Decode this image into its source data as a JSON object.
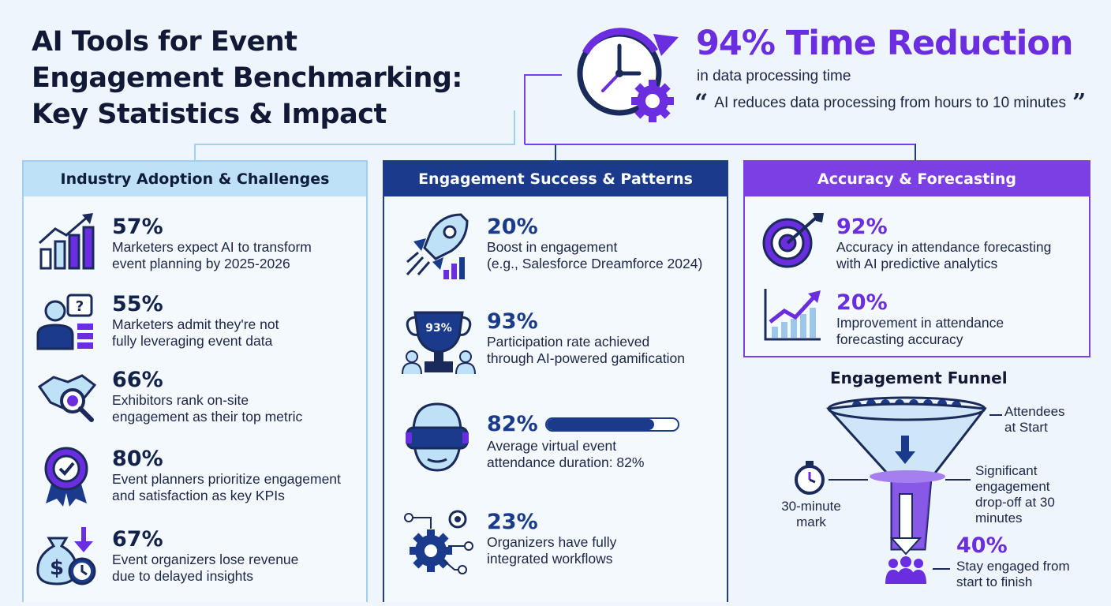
{
  "title": "AI Tools for Event Engagement Benchmarking: Key Statistics & Impact",
  "headline": {
    "value": "94% Time Reduction",
    "subtitle": "in data processing time",
    "quote": "AI reduces data processing from hours to 10 minutes"
  },
  "sections": [
    {
      "heading": "Industry Adoption & Challenges",
      "stats": [
        {
          "value": "57%",
          "line1": "Marketers expect AI to transform",
          "line2": "event planning by 2025-2026",
          "icon": "growth-chart-icon"
        },
        {
          "value": "55%",
          "line1": "Marketers admit they're not",
          "line2": "fully leveraging event data",
          "icon": "confused-person-icon"
        },
        {
          "value": "66%",
          "line1": "Exhibitors rank on-site",
          "line2": "engagement as their top metric",
          "icon": "handshake-magnifier-icon"
        },
        {
          "value": "80%",
          "line1": "Event planners prioritize engagement",
          "line2": "and satisfaction as key KPIs",
          "icon": "award-badge-icon"
        },
        {
          "value": "67%",
          "line1": "Event organizers lose revenue",
          "line2": "due to delayed insights",
          "icon": "money-bag-clock-icon"
        }
      ]
    },
    {
      "heading": "Engagement Success & Patterns",
      "stats": [
        {
          "value": "20%",
          "line1": "Boost in engagement",
          "line2": "(e.g., Salesforce Dreamforce 2024)",
          "icon": "rocket-icon"
        },
        {
          "value": "93%",
          "line1": "Participation rate achieved",
          "line2": "through AI-powered gamification",
          "icon": "trophy-icon",
          "badge": "93%"
        },
        {
          "value": "82%",
          "line1": "Average virtual event",
          "line2": "attendance duration: 82%",
          "icon": "vr-headset-icon",
          "progress": 0.82
        },
        {
          "value": "23%",
          "line1": "Organizers have fully",
          "line2": "integrated workflows",
          "icon": "gears-network-icon"
        }
      ]
    },
    {
      "heading": "Accuracy & Forecasting",
      "stats": [
        {
          "value": "92%",
          "line1": "Accuracy in attendance forecasting",
          "line2": "with AI predictive analytics",
          "icon": "target-icon"
        },
        {
          "value": "20%",
          "line1": "Improvement in attendance",
          "line2": "forecasting accuracy",
          "icon": "rising-chart-icon"
        }
      ]
    }
  ],
  "funnel": {
    "title": "Engagement Funnel",
    "top_label_1": "Attendees",
    "top_label_2": "at Start",
    "mid_label_1": "Significant",
    "mid_label_2": "engagement",
    "mid_label_3": "drop-off at 30",
    "mid_label_4": "minutes",
    "timer_label_1": "30-minute",
    "timer_label_2": "mark",
    "bottom_value": "40%",
    "bottom_label_1": "Stay engaged from",
    "bottom_label_2": "start to finish"
  },
  "colors": {
    "purple": "#6a2ee0",
    "navy": "#1a3a8c",
    "light_blue": "#bfe1f8",
    "background": "#eef5fc"
  }
}
